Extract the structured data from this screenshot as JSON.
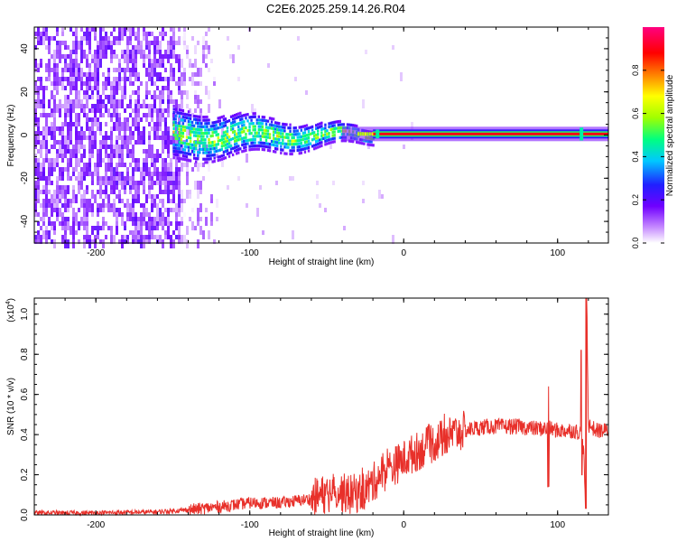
{
  "title": "C2E6.2025.259.14.26.R04",
  "chart_data": [
    {
      "type": "heatmap",
      "xlabel": "Height of straight line (km)",
      "ylabel": "Frequency (Hz)",
      "xlim": [
        -240,
        133
      ],
      "ylim": [
        -50,
        50
      ],
      "xticks": [
        -200,
        -100,
        0,
        100
      ],
      "xtick_labels": [
        "-200",
        "-100",
        "0",
        "100"
      ],
      "yticks": [
        -40,
        -20,
        0,
        20,
        40
      ],
      "ytick_labels": [
        "-40",
        "-20",
        "0",
        "20",
        "40"
      ],
      "colorbar": {
        "label": "Normalized spectral amplitude",
        "range": [
          0,
          1
        ],
        "ticks": [
          0.0,
          0.2,
          0.4,
          0.6,
          0.8
        ],
        "tick_labels": [
          "0.0",
          "0.2",
          "0.4",
          "0.6",
          "0.8"
        ],
        "colors": [
          "#ffffff",
          "#8a00ff",
          "#2020ff",
          "#00c8ff",
          "#00ff80",
          "#a0ff00",
          "#ffff00",
          "#ff8000",
          "#ff0000",
          "#ff00ff"
        ]
      },
      "regions": [
        {
          "name": "noise-dense",
          "x_range": [
            -240,
            -145
          ],
          "freq_range": [
            -50,
            50
          ],
          "amplitude": [
            0.05,
            0.2
          ]
        },
        {
          "name": "noise-fade",
          "x_range": [
            -145,
            -120
          ],
          "freq_range": [
            -50,
            50
          ],
          "amplitude": [
            0.0,
            0.12
          ]
        },
        {
          "name": "spread-signal",
          "x_range": [
            -150,
            -20
          ],
          "freq_range": [
            -8,
            8
          ],
          "amplitude": [
            0.2,
            0.5
          ]
        },
        {
          "name": "narrow-line",
          "x_range": [
            -20,
            133
          ],
          "freq_center": 0.5,
          "amplitude": [
            0.8,
            0.95
          ]
        }
      ],
      "line_color": "#ff2a2a"
    },
    {
      "type": "line",
      "xlabel": "Height of straight line (km)",
      "ylabel": "SNR (10 * v/v)",
      "y_multiplier": "(x10",
      "y_multiplier_exp": "4",
      "y_multiplier_close": ")",
      "xlim": [
        -240,
        133
      ],
      "ylim": [
        0,
        1.08
      ],
      "xticks": [
        -200,
        -100,
        0,
        100
      ],
      "xtick_labels": [
        "-200",
        "-100",
        "0",
        "100"
      ],
      "yticks": [
        0.0,
        0.2,
        0.4,
        0.6,
        0.8,
        1.0
      ],
      "ytick_labels": [
        "0.0",
        "0.2",
        "0.4",
        "0.6",
        "0.8",
        "1.0"
      ],
      "color": "#e8302a",
      "series": [
        {
          "name": "SNR",
          "x": [
            -240,
            -200,
            -160,
            -140,
            -120,
            -100,
            -80,
            -60,
            -45,
            -35,
            -25,
            -15,
            -5,
            5,
            15,
            25,
            35,
            45,
            55,
            65,
            75,
            85,
            90,
            95,
            100,
            110,
            115,
            117,
            118,
            119,
            120,
            125,
            133
          ],
          "y": [
            0.01,
            0.01,
            0.015,
            0.025,
            0.04,
            0.06,
            0.06,
            0.08,
            0.12,
            0.1,
            0.12,
            0.2,
            0.25,
            0.3,
            0.34,
            0.38,
            0.41,
            0.43,
            0.44,
            0.44,
            0.44,
            0.43,
            0.43,
            0.43,
            0.42,
            0.42,
            0.41,
            0.3,
            0.1,
            1.05,
            0.45,
            0.42,
            0.42
          ]
        }
      ],
      "spikes": [
        {
          "x": 94,
          "y_max": 0.64,
          "y_min": 0.14
        },
        {
          "x": 115.5,
          "y_max": 0.82,
          "y_min": 0.2
        },
        {
          "x": 118.5,
          "y_max": 1.08,
          "y_min": 0.03
        }
      ]
    }
  ]
}
